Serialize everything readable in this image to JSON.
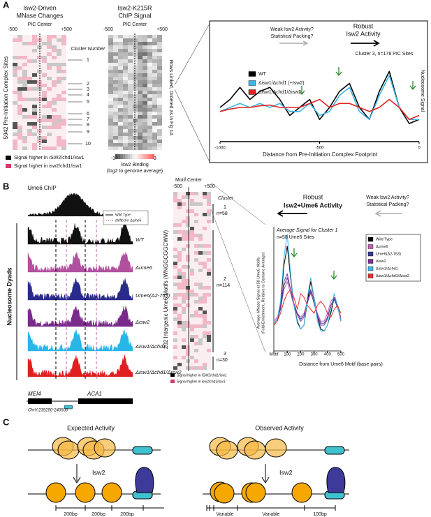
{
  "panel_a": {
    "letter": "A",
    "heatmap1_title": [
      "Isw2-Driven",
      "MNase Changes"
    ],
    "heatmap1_ticks": [
      "-500",
      "PIC Center",
      "+500"
    ],
    "heatmap2_title": [
      "Isw2-K215R",
      "ChIP Signal"
    ],
    "heatmap2_ticks": [
      "-500",
      "PIC Center",
      "+500"
    ],
    "cluster_header": "Cluster Number",
    "clusters": [
      "1",
      "2",
      "3",
      "4",
      "5",
      "6",
      "7",
      "8",
      "9",
      "10"
    ],
    "row_label": "5942 Pre-Initiation Complex Sites",
    "linked_label": "Rows Linked, Ordered as in Fig 1A",
    "legend": [
      "Signal higher in ISW2/chd1/isw1",
      "Signal higher in isw2/chd1/isw1"
    ],
    "colorbar_ticks": [
      "-3",
      "3"
    ],
    "colorbar_label": [
      "Isw2 Binding",
      "(log2 to genome average)"
    ]
  },
  "panel_b": {
    "letter": "B",
    "chip_label": "Ume6 ChIP",
    "track_legend": [
      "Wild Type",
      "shifted in Δume6"
    ],
    "tracks": [
      "WT",
      "Δume6",
      "Ume6(Δ2-763)",
      "Δisw2",
      "Δisw1/Δchd1",
      "Δisw1/Δchd1/Δisw2"
    ],
    "dyads_label": "Nucleosome Dyads",
    "genes": [
      "MEI4",
      "ACA1"
    ],
    "coords": "ChrV:239250-240500",
    "heatmap_header": "Motif Center",
    "heatmap_ticks": [
      "-500",
      "+500"
    ],
    "cluster_header": "Cluster",
    "clusters": [
      {
        "name": "1",
        "n": "n=58"
      },
      {
        "name": "2",
        "n": "n=114"
      },
      {
        "name": "3",
        "n": "n=30"
      }
    ],
    "motif_label": "202 Intergenic Ume6 Motifs (WNGGCGGCWW)",
    "legend": [
      "Signal higher in ISW2/chd1/isw1",
      "Signal higher in isw2/chd1/isw1"
    ]
  },
  "panel_c": {
    "letter": "C",
    "left_title": "Expected Activity",
    "right_title": "Observed Activity",
    "enzyme": [
      "Isw2",
      "Isw2"
    ],
    "left_spacing": [
      "200bp",
      "200bp",
      "200bp"
    ],
    "right_spacing": [
      "Variable",
      "Variable",
      "100bp"
    ]
  },
  "chart_data": [
    {
      "type": "line",
      "annotations": [
        "Weak Isw2 Activity?",
        "Statistical Packing?",
        "Robust",
        "Isw2 Activity",
        "Cluster 3, n=178 PIC Sites"
      ],
      "ylabel": "Nucleosome Signal",
      "xlabel": "Distance from Pre-Initiation Complex Footprint",
      "x": [
        -1000,
        -950,
        -900,
        -850,
        -800,
        -750,
        -700,
        -650,
        -600,
        -550,
        -500,
        -450,
        -400,
        -350,
        -300,
        -250,
        -200,
        -150,
        -100,
        -50,
        0
      ],
      "xlim": [
        -1000,
        0
      ],
      "xticks": [
        -1000,
        -500,
        0
      ],
      "ylim": [
        0,
        10
      ],
      "series": [
        {
          "name": "WT",
          "color": "#000000",
          "values": [
            4,
            5,
            6.5,
            5,
            6,
            6.5,
            5,
            3,
            4,
            5,
            2.5,
            4,
            6,
            7,
            4,
            2.5,
            6,
            8.5,
            4,
            2,
            2.5
          ]
        },
        {
          "name": "Δisw1/Δchd1 (+Isw2)",
          "color": "#3cb4e6",
          "values": [
            3.5,
            4,
            4.5,
            4,
            4.5,
            4,
            4.5,
            3.5,
            3.5,
            4.5,
            3,
            3.5,
            5.5,
            6.5,
            3.5,
            2.5,
            5.5,
            8,
            4,
            2.5,
            2.5
          ]
        },
        {
          "name": "Δisw1/Δchd1/Δisw2",
          "color": "#e02424",
          "values": [
            3.5,
            3.8,
            4,
            4,
            4.2,
            4.3,
            4,
            4,
            4,
            4.5,
            5,
            4,
            4.5,
            4.5,
            4,
            3.5,
            4,
            5,
            4,
            2.5,
            3
          ]
        }
      ]
    },
    {
      "type": "line",
      "annotations": [
        "Robust",
        "Isw2+Ume6 Activity",
        "Weak Isw2 Activity?",
        "Statistical Packing?",
        "Average Signal for Cluster 1",
        "n=58 Ume6 Sites"
      ],
      "ylabel": [
        "Average MNase Signal at 58 Ume6 Motifs",
        "(Fold-Enrichment, Relative to Genome Average)"
      ],
      "xlabel": "Distance from Ume6 Motif (base pairs)",
      "x": [
        0,
        25,
        50,
        75,
        100,
        125,
        150,
        175,
        200,
        225,
        250,
        275,
        300,
        325,
        350,
        375,
        400,
        425,
        450,
        475,
        500
      ],
      "xlim": [
        0,
        500
      ],
      "xticks": [
        {
          "value": 0,
          "label": "Motif"
        },
        100,
        200,
        300,
        400,
        500
      ],
      "ylim": [
        0,
        6
      ],
      "series": [
        {
          "name": "Wild Type",
          "color": "#000000",
          "values": [
            1.2,
            1.4,
            2.2,
            4.2,
            5.2,
            3.6,
            2.2,
            1.4,
            1.0,
            1.2,
            2.4,
            3.4,
            2.6,
            1.6,
            1.0,
            0.9,
            1.2,
            1.8,
            2.6,
            2.2,
            1.4
          ]
        },
        {
          "name": "Δume6",
          "color": "#c060b0",
          "values": [
            1.4,
            1.6,
            2.0,
            3.0,
            3.4,
            2.8,
            2.2,
            1.8,
            1.6,
            1.8,
            2.4,
            2.8,
            2.4,
            1.8,
            1.4,
            1.4,
            1.8,
            2.4,
            2.6,
            2.2,
            1.6
          ]
        },
        {
          "name": "Ume6(Δ2-763)",
          "color": "#3a3a9a",
          "values": [
            1.3,
            1.5,
            2.0,
            3.2,
            3.6,
            3.0,
            2.3,
            1.8,
            1.5,
            1.7,
            2.3,
            2.9,
            2.3,
            1.7,
            1.3,
            1.3,
            1.6,
            2.2,
            2.5,
            2.1,
            1.5
          ]
        },
        {
          "name": "Δisw2",
          "color": "#7b3294",
          "values": [
            1.3,
            1.5,
            2.2,
            3.4,
            3.8,
            3.0,
            2.2,
            1.7,
            1.4,
            1.6,
            2.4,
            3.0,
            2.5,
            1.6,
            1.2,
            1.2,
            1.5,
            2.2,
            2.6,
            2.2,
            1.5
          ]
        },
        {
          "name": "Δisw1/Δchd1",
          "color": "#3cb8e8",
          "values": [
            1.3,
            1.5,
            2.4,
            4.6,
            5.8,
            3.8,
            2.2,
            1.3,
            1.0,
            1.2,
            2.6,
            3.6,
            2.6,
            1.4,
            0.9,
            0.9,
            1.2,
            2.0,
            2.8,
            2.2,
            1.4
          ]
        },
        {
          "name": "Δisw1/Δchd1/Δisw2",
          "color": "#e03030",
          "values": [
            1.2,
            1.4,
            1.8,
            2.4,
            2.8,
            3.0,
            2.6,
            2.0,
            2.8,
            2.6,
            2.2,
            2.0,
            1.8,
            2.2,
            2.4,
            2.2,
            1.8,
            1.6,
            2.0,
            2.2,
            1.8
          ]
        }
      ]
    }
  ]
}
